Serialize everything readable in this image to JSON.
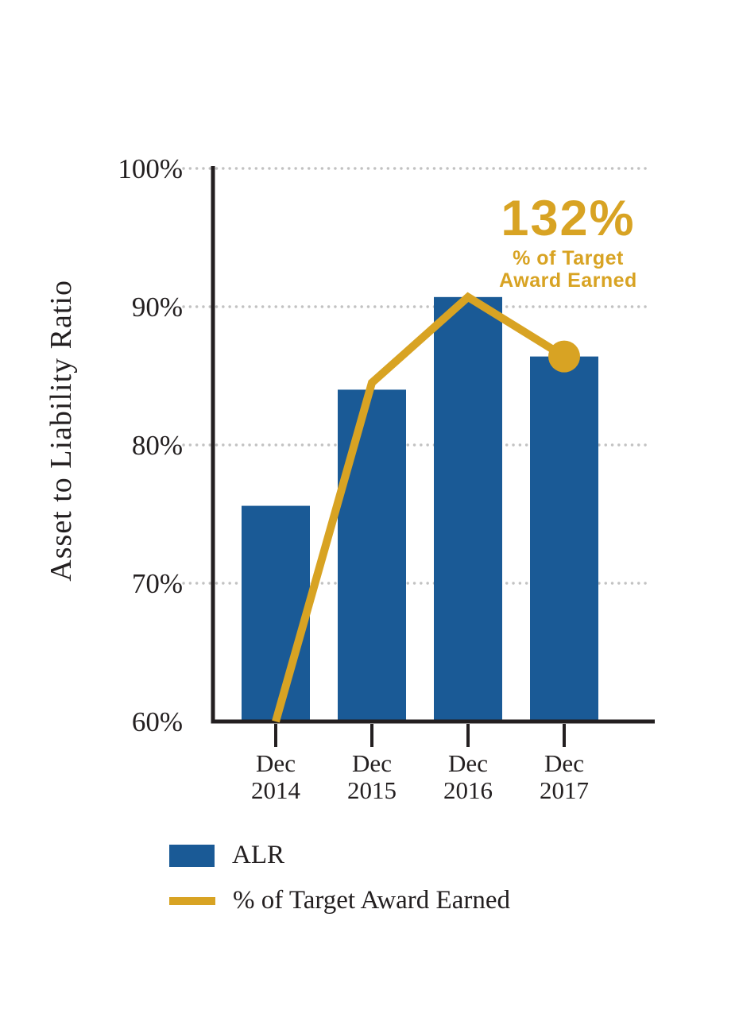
{
  "chart_data": {
    "type": "bar",
    "title": "",
    "ylabel": "Asset to Liability Ratio",
    "xlabel": "",
    "ylim": [
      60,
      100
    ],
    "yticks": [
      100,
      90,
      80,
      70,
      60
    ],
    "ytick_labels": [
      "100%",
      "90%",
      "80%",
      "70%",
      "60%"
    ],
    "categories": [
      [
        "Dec",
        "2014"
      ],
      [
        "Dec",
        "2015"
      ],
      [
        "Dec",
        "2016"
      ],
      [
        "Dec",
        "2017"
      ]
    ],
    "series": [
      {
        "name": "ALR",
        "type": "bar",
        "color": "#1A5A96",
        "values": [
          75.6,
          84.0,
          90.7,
          86.4
        ]
      },
      {
        "name": "% of Target Award Earned",
        "type": "line",
        "color": "#D8A323",
        "values": [
          60.0,
          84.5,
          90.7,
          86.4
        ],
        "marker_on_last_point": true
      }
    ],
    "grid": "horizontal dotted at y ticks",
    "legend_position": "bottom-left"
  },
  "annotation": {
    "value": "132%",
    "lines": [
      "% of Target",
      "Award Earned"
    ]
  },
  "legend": {
    "items": [
      {
        "label": "ALR",
        "swatch": "bar"
      },
      {
        "label": "% of Target Award Earned",
        "swatch": "line"
      }
    ]
  },
  "colors": {
    "bar": "#1A5A96",
    "line": "#D8A323",
    "axis": "#231F20",
    "grid": "#C2C2C2",
    "text": "#231F20"
  }
}
